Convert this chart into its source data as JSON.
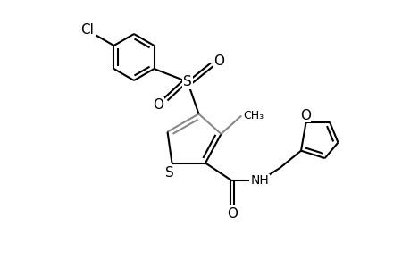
{
  "background_color": "#ffffff",
  "line_color": "#000000",
  "gray_color": "#888888",
  "line_width": 1.5,
  "figsize": [
    4.6,
    3.0
  ],
  "dpi": 100,
  "xlim": [
    0,
    9.2
  ],
  "ylim": [
    0,
    6.0
  ]
}
